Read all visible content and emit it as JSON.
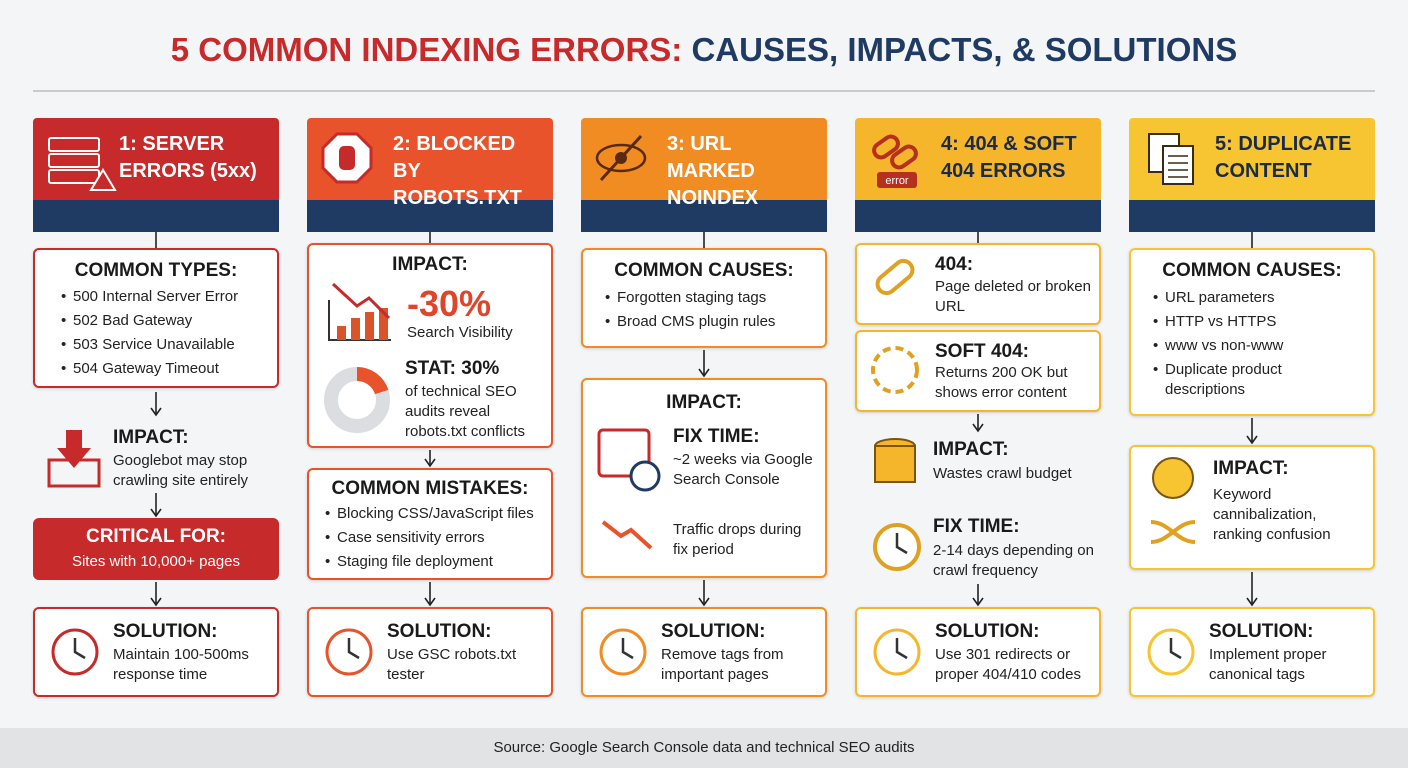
{
  "title": {
    "part1": "5 COMMON INDEXING ERRORS:",
    "part2": "CAUSES, IMPACTS, & SOLUTIONS"
  },
  "columns": [
    {
      "header": "1: SERVER ERRORS (5xx)",
      "types": {
        "heading": "COMMON TYPES:",
        "items": [
          "500 Internal Server Error",
          "502 Bad Gateway",
          "503 Service Unavailable",
          "504 Gateway Timeout"
        ]
      },
      "impact": {
        "heading": "IMPACT:",
        "text": "Googlebot may stop crawling site entirely"
      },
      "critical": {
        "heading": "CRITICAL FOR:",
        "text": "Sites with 10,000+ pages"
      },
      "solution": {
        "heading": "SOLUTION:",
        "text": "Maintain 100-500ms response time"
      }
    },
    {
      "header": "2: BLOCKED BY ROBOTS.TXT",
      "impact": {
        "heading": "IMPACT:",
        "figure": "-30%",
        "label": "Search Visibility"
      },
      "stat": {
        "heading": "STAT: 30%",
        "text": "of technical SEO audits reveal robots.txt conflicts"
      },
      "mistakes": {
        "heading": "COMMON MISTAKES:",
        "items": [
          "Blocking CSS/JavaScript files",
          "Case sensitivity errors",
          "Staging file deployment"
        ]
      },
      "solution": {
        "heading": "SOLUTION:",
        "text": "Use GSC robots.txt tester"
      }
    },
    {
      "header": "3: URL MARKED NOINDEX",
      "causes": {
        "heading": "COMMON CAUSES:",
        "items": [
          "Forgotten staging tags",
          "Broad CMS plugin rules"
        ]
      },
      "impact": {
        "heading": "IMPACT:",
        "fix_heading": "FIX TIME:",
        "fix_text": "~2 weeks via Google Search Console",
        "traffic": "Traffic drops during fix period"
      },
      "solution": {
        "heading": "SOLUTION:",
        "text": "Remove tags from important pages"
      }
    },
    {
      "header": "4: 404 & SOFT 404 ERRORS",
      "icon_label": "error",
      "e404": {
        "heading": "404:",
        "text": "Page deleted or broken URL"
      },
      "soft404": {
        "heading": "SOFT 404:",
        "text": "Returns 200 OK but shows error content"
      },
      "impact": {
        "heading": "IMPACT:",
        "text": "Wastes crawl budget"
      },
      "fix": {
        "heading": "FIX TIME:",
        "text": "2-14 days depending on crawl frequency"
      },
      "solution": {
        "heading": "SOLUTION:",
        "text": "Use 301 redirects or proper 404/410 codes"
      }
    },
    {
      "header": "5: DUPLICATE CONTENT",
      "causes": {
        "heading": "COMMON CAUSES:",
        "items": [
          "URL parameters",
          "HTTP vs HTTPS",
          "www vs non-www",
          "Duplicate product descriptions"
        ]
      },
      "impact": {
        "heading": "IMPACT:",
        "text": "Keyword cannibalization, ranking confusion"
      },
      "solution": {
        "heading": "SOLUTION:",
        "text": "Implement proper canonical tags"
      }
    }
  ],
  "source": "Source: Google Search Console data and technical SEO audits"
}
